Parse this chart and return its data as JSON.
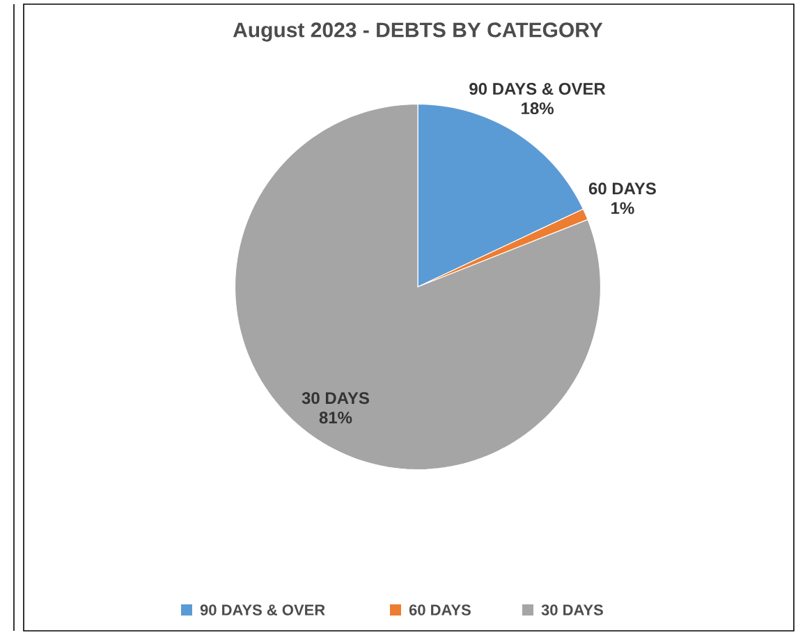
{
  "chart_data": {
    "type": "pie",
    "title": "August 2023 - DEBTS BY CATEGORY",
    "categories": [
      "90 DAYS & OVER",
      "60 DAYS",
      "30 DAYS"
    ],
    "values": [
      18,
      1,
      81
    ],
    "value_labels": [
      "18%",
      "1%",
      "81%"
    ],
    "colors": [
      "#5b9bd5",
      "#ed7d31",
      "#a5a5a5"
    ],
    "legend": "bottom"
  }
}
